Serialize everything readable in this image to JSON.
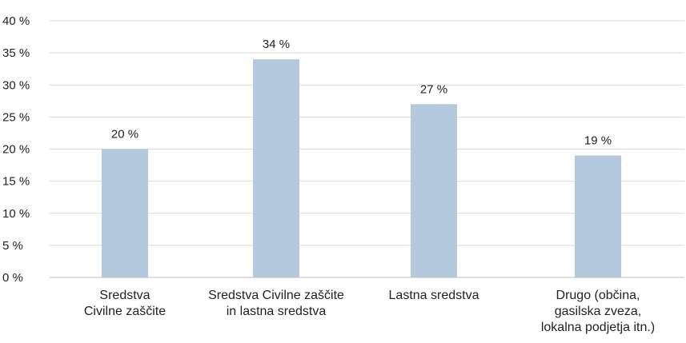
{
  "chart_data": {
    "type": "bar",
    "categories": [
      [
        "Sredstva",
        "Civilne zaščite"
      ],
      [
        "Sredstva Civilne zaščite",
        "in lastna sredstva"
      ],
      [
        "Lastna sredstva"
      ],
      [
        "Drugo (občina,",
        "gasilska zveza,",
        "lokalna podjetja itn.)"
      ]
    ],
    "values": [
      20,
      34,
      27,
      19
    ],
    "data_labels": [
      "20 %",
      "34 %",
      "27 %",
      "19 %"
    ],
    "ylim": [
      0,
      40
    ],
    "yticks": [
      0,
      5,
      10,
      15,
      20,
      25,
      30,
      35,
      40
    ],
    "ytick_labels": [
      "0 %",
      "5 %",
      "10 %",
      "15 %",
      "20 %",
      "25 %",
      "30 %",
      "35 %",
      "40 %"
    ],
    "grid": true,
    "colors": {
      "bar": "#b4c9dd",
      "grid": "#d9d9d9",
      "axis": "#bfbfbf",
      "text": "#222222"
    }
  }
}
